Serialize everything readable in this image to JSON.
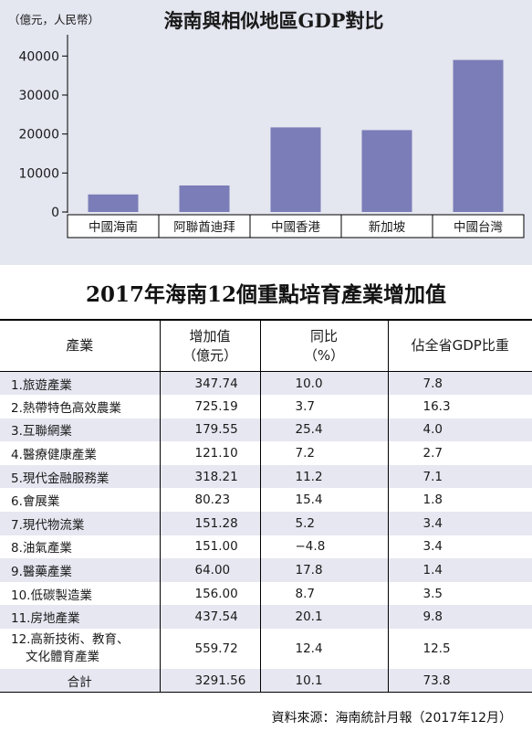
{
  "chart_data": {
    "type": "bar",
    "title": "海南與相似地區GDP對比",
    "unit_label": "（億元，人民幣）",
    "categories": [
      "中國海南",
      "阿聯酋迪拜",
      "中國香港",
      "新加坡",
      "中國台灣"
    ],
    "values": [
      4500,
      6800,
      21700,
      21000,
      39000
    ],
    "ylim": [
      0,
      45000
    ],
    "yticks": [
      0,
      10000,
      20000,
      30000,
      40000
    ],
    "grid": false,
    "bar_color": "#7b7db8",
    "background_color": "#e4e6f0"
  },
  "table": {
    "title": "2017年海南12個重點培育產業增加值",
    "headers": [
      {
        "line1": "產業",
        "line2": ""
      },
      {
        "line1": "增加值",
        "line2": "（億元）"
      },
      {
        "line1": "同比",
        "line2": "（%）"
      },
      {
        "line1": "佔全省GDP比重",
        "line2": ""
      }
    ],
    "rows": [
      {
        "industry": "1.旅遊產業",
        "value": "347.74",
        "yoy": "10.0",
        "share": "7.8"
      },
      {
        "industry": "2.熱帶特色高效農業",
        "value": "725.19",
        "yoy": "3.7",
        "share": "16.3"
      },
      {
        "industry": "3.互聯網業",
        "value": "179.55",
        "yoy": "25.4",
        "share": "4.0"
      },
      {
        "industry": "4.醫療健康產業",
        "value": "121.10",
        "yoy": "7.2",
        "share": "2.7"
      },
      {
        "industry": "5.現代金融服務業",
        "value": "318.21",
        "yoy": "11.2",
        "share": "7.1"
      },
      {
        "industry": "6.會展業",
        "value": "80.23",
        "yoy": "15.4",
        "share": "1.8"
      },
      {
        "industry": "7.現代物流業",
        "value": "151.28",
        "yoy": "5.2",
        "share": "3.4"
      },
      {
        "industry": "8.油氣產業",
        "value": "151.00",
        "yoy": "−4.8",
        "share": "3.4"
      },
      {
        "industry": "9.醫藥產業",
        "value": "64.00",
        "yoy": "17.8",
        "share": "1.4"
      },
      {
        "industry": "10.低碳製造業",
        "value": "156.00",
        "yoy": "8.7",
        "share": "3.5"
      },
      {
        "industry": "11.房地產業",
        "value": "437.54",
        "yoy": "20.1",
        "share": "9.8"
      },
      {
        "industry": "12.高新技術、教育、",
        "industry_line2": "文化體育產業",
        "value": "559.72",
        "yoy": "12.4",
        "share": "12.5"
      }
    ],
    "total": {
      "industry": "合計",
      "value": "3291.56",
      "yoy": "10.1",
      "share": "73.8"
    }
  },
  "source": "資料來源：海南統計月報（2017年12月）"
}
